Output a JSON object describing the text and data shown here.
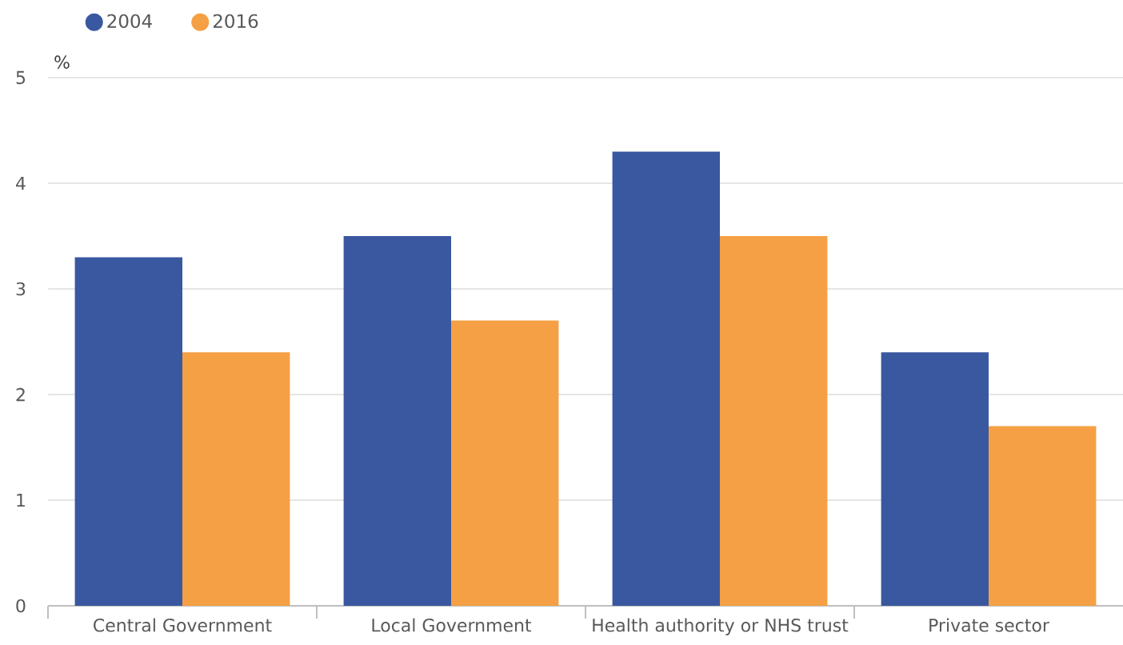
{
  "chart_data": {
    "type": "bar",
    "ylabel": "%",
    "categories": [
      "Central Government",
      "Local Government",
      "Health authority or NHS trust",
      "Private sector"
    ],
    "series": [
      {
        "name": "2004",
        "color": "#3a58a0",
        "values": [
          3.3,
          3.5,
          4.3,
          2.4
        ]
      },
      {
        "name": "2016",
        "color": "#f5a044",
        "values": [
          2.4,
          2.7,
          3.5,
          1.7
        ]
      }
    ],
    "ylim": [
      0,
      5
    ],
    "yticks": [
      0,
      1,
      2,
      3,
      4,
      5
    ],
    "grid": "y",
    "legend": "top left"
  }
}
